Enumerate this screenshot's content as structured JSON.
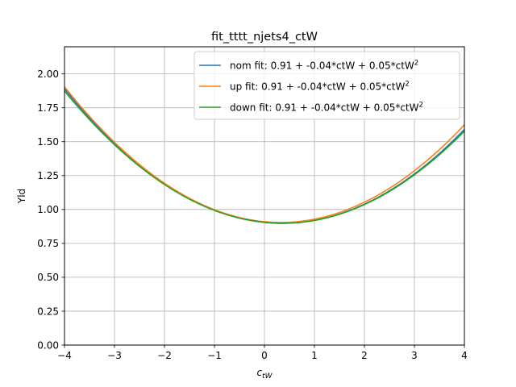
{
  "chart_data": {
    "type": "line",
    "title": "fit_tttt_njets4_ctW",
    "xlabel_main": "c",
    "xlabel_sub": "tW",
    "ylabel": "Yld",
    "xlim": [
      -4,
      4
    ],
    "ylim": [
      0,
      2.2
    ],
    "xticks": [
      -4,
      -3,
      -2,
      -1,
      0,
      1,
      2,
      3,
      4
    ],
    "xtick_labels": [
      "−4",
      "−3",
      "−2",
      "−1",
      "0",
      "1",
      "2",
      "3",
      "4"
    ],
    "yticks": [
      0,
      0.25,
      0.5,
      0.75,
      1.0,
      1.25,
      1.5,
      1.75,
      2.0
    ],
    "ytick_labels": [
      "0.00",
      "0.25",
      "0.50",
      "0.75",
      "1.00",
      "1.25",
      "1.50",
      "1.75",
      "2.00"
    ],
    "grid": true,
    "legend_position": "top-right",
    "series": [
      {
        "name": "nom fit: 0.91 + -0.04*ctW + 0.05*ctW",
        "name_sup": "2",
        "color": "#1f77b4",
        "coefficients": [
          0.905,
          -0.0375,
          0.0522
        ]
      },
      {
        "name": "up fit: 0.91 + -0.04*ctW + 0.05*ctW",
        "name_sup": "2",
        "color": "#ff7f0e",
        "coefficients": [
          0.91,
          -0.035,
          0.0534
        ]
      },
      {
        "name": "down fit: 0.91 + -0.04*ctW + 0.05*ctW",
        "name_sup": "2",
        "color": "#2ca02c",
        "coefficients": [
          0.905,
          -0.037,
          0.0513
        ]
      }
    ]
  }
}
